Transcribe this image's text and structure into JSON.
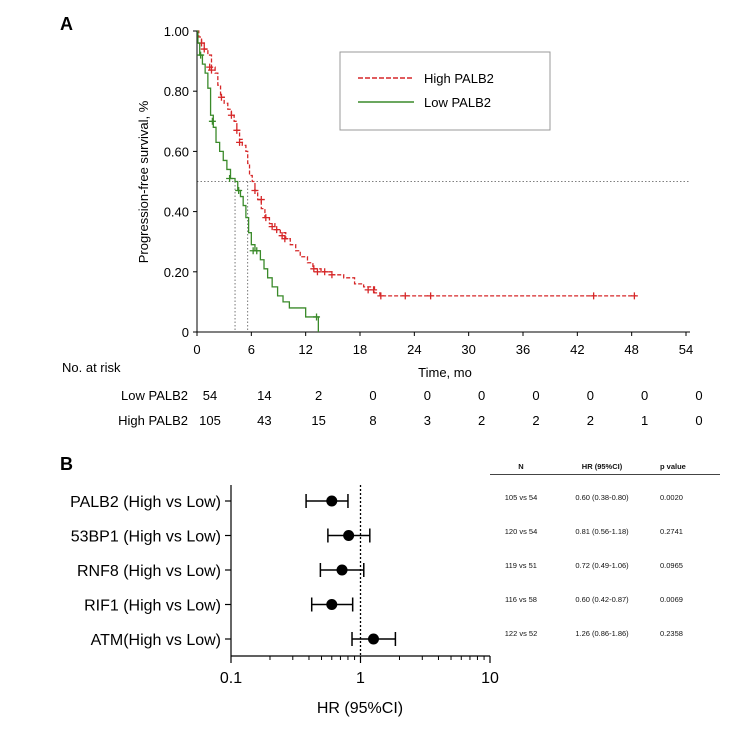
{
  "panel_a": {
    "letter": "A",
    "risk_table": {
      "title": "No. at risk",
      "rows": [
        {
          "label": "Low PALB2",
          "values": [
            "54",
            "14",
            "2",
            "0",
            "0",
            "0",
            "0",
            "0",
            "0",
            "0"
          ]
        },
        {
          "label": "High PALB2",
          "values": [
            "105",
            "43",
            "15",
            "8",
            "3",
            "2",
            "2",
            "2",
            "1",
            "0"
          ]
        }
      ]
    }
  },
  "panel_b": {
    "letter": "B",
    "table": {
      "headers": [
        "N",
        "HR (95%CI)",
        "p value"
      ],
      "rows": [
        {
          "n": "105 vs 54",
          "hr": "0.60 (0.38-0.80)",
          "p": "0.0020"
        },
        {
          "n": "120 vs 54",
          "hr": "0.81 (0.56-1.18)",
          "p": "0.2741"
        },
        {
          "n": "119 vs 51",
          "hr": "0.72 (0.49-1.06)",
          "p": "0.0965"
        },
        {
          "n": "116 vs 58",
          "hr": "0.60 (0.42-0.87)",
          "p": "0.0069"
        },
        {
          "n": "122 vs 52",
          "hr": "1.26 (0.86-1.86)",
          "p": "0.2358"
        }
      ]
    }
  },
  "chart_data": [
    {
      "type": "line",
      "subtype": "kaplan-meier",
      "title": "",
      "xlabel": "Time, mo",
      "ylabel": "Progression-free survival, %",
      "xlim": [
        0,
        54
      ],
      "ylim": [
        0,
        1
      ],
      "xticks": [
        "0",
        "6",
        "12",
        "18",
        "24",
        "30",
        "36",
        "42",
        "48",
        "54"
      ],
      "yticks": [
        "0",
        "0.20",
        "0.40",
        "0.60",
        "0.80",
        "1.00"
      ],
      "reference_line_y": 0.5,
      "median_markers_x": [
        4.2,
        5.6
      ],
      "legend_position": "top-right",
      "series": [
        {
          "name": "High PALB2",
          "color": "#d62728",
          "dash": true,
          "steps": [
            [
              0,
              1.0
            ],
            [
              0.2,
              0.98
            ],
            [
              0.5,
              0.96
            ],
            [
              0.8,
              0.94
            ],
            [
              1.2,
              0.92
            ],
            [
              1.6,
              0.88
            ],
            [
              2.0,
              0.86
            ],
            [
              2.3,
              0.82
            ],
            [
              2.6,
              0.78
            ],
            [
              3.0,
              0.76
            ],
            [
              3.4,
              0.74
            ],
            [
              3.8,
              0.72
            ],
            [
              4.1,
              0.7
            ],
            [
              4.4,
              0.67
            ],
            [
              4.7,
              0.64
            ],
            [
              5.0,
              0.62
            ],
            [
              5.4,
              0.6
            ],
            [
              5.6,
              0.56
            ],
            [
              5.8,
              0.52
            ],
            [
              6.1,
              0.5
            ],
            [
              6.4,
              0.47
            ],
            [
              6.7,
              0.44
            ],
            [
              7.1,
              0.41
            ],
            [
              7.5,
              0.38
            ],
            [
              8.0,
              0.36
            ],
            [
              8.6,
              0.34
            ],
            [
              9.2,
              0.33
            ],
            [
              9.8,
              0.31
            ],
            [
              10.3,
              0.29
            ],
            [
              10.9,
              0.27
            ],
            [
              11.4,
              0.25
            ],
            [
              12.2,
              0.23
            ],
            [
              12.8,
              0.21
            ],
            [
              13.7,
              0.2
            ],
            [
              14.9,
              0.19
            ],
            [
              16.2,
              0.18
            ],
            [
              17.4,
              0.16
            ],
            [
              18.4,
              0.15
            ],
            [
              19.6,
              0.13
            ],
            [
              20.2,
              0.12
            ],
            [
              48.5,
              0.12
            ]
          ],
          "censors": [
            [
              0.5,
              0.96
            ],
            [
              0.8,
              0.94
            ],
            [
              1.4,
              0.88
            ],
            [
              1.6,
              0.87
            ],
            [
              2.7,
              0.78
            ],
            [
              3.8,
              0.72
            ],
            [
              4.4,
              0.67
            ],
            [
              4.7,
              0.63
            ],
            [
              6.4,
              0.47
            ],
            [
              7.1,
              0.44
            ],
            [
              7.6,
              0.38
            ],
            [
              8.3,
              0.35
            ],
            [
              8.8,
              0.34
            ],
            [
              9.4,
              0.32
            ],
            [
              9.7,
              0.31
            ],
            [
              12.9,
              0.21
            ],
            [
              13.3,
              0.2
            ],
            [
              14.1,
              0.2
            ],
            [
              14.9,
              0.19
            ],
            [
              18.9,
              0.14
            ],
            [
              19.5,
              0.14
            ],
            [
              20.3,
              0.12
            ],
            [
              23.0,
              0.12
            ],
            [
              25.8,
              0.12
            ],
            [
              43.8,
              0.12
            ],
            [
              48.3,
              0.12
            ]
          ]
        },
        {
          "name": "Low PALB2",
          "color": "#3a8a2a",
          "dash": false,
          "steps": [
            [
              0,
              1.0
            ],
            [
              0.1,
              0.96
            ],
            [
              0.3,
              0.92
            ],
            [
              0.6,
              0.89
            ],
            [
              0.9,
              0.86
            ],
            [
              1.2,
              0.81
            ],
            [
              1.5,
              0.72
            ],
            [
              1.8,
              0.68
            ],
            [
              2.1,
              0.63
            ],
            [
              2.5,
              0.6
            ],
            [
              2.9,
              0.57
            ],
            [
              3.3,
              0.54
            ],
            [
              3.7,
              0.51
            ],
            [
              4.2,
              0.5
            ],
            [
              4.5,
              0.47
            ],
            [
              4.8,
              0.45
            ],
            [
              5.1,
              0.42
            ],
            [
              5.4,
              0.38
            ],
            [
              5.7,
              0.33
            ],
            [
              6.0,
              0.29
            ],
            [
              6.4,
              0.27
            ],
            [
              7.0,
              0.24
            ],
            [
              7.4,
              0.21
            ],
            [
              7.8,
              0.18
            ],
            [
              8.3,
              0.15
            ],
            [
              8.9,
              0.12
            ],
            [
              9.5,
              0.1
            ],
            [
              10.2,
              0.08
            ],
            [
              11.1,
              0.08
            ],
            [
              12.0,
              0.05
            ],
            [
              13.4,
              0.05
            ],
            [
              13.4,
              0.0
            ]
          ],
          "censors": [
            [
              0.4,
              0.92
            ],
            [
              1.7,
              0.7
            ],
            [
              3.6,
              0.51
            ],
            [
              4.6,
              0.47
            ],
            [
              6.2,
              0.27
            ],
            [
              6.6,
              0.27
            ],
            [
              13.2,
              0.05
            ]
          ]
        }
      ]
    },
    {
      "type": "scatter",
      "subtype": "forest-plot",
      "title": "",
      "xlabel": "HR (95%CI)",
      "ylabel": "",
      "xscale": "log",
      "xlim": [
        0.1,
        10
      ],
      "xticks": [
        "0.1",
        "1",
        "10"
      ],
      "reference_line_x": 1,
      "categories": [
        "PALB2 (High vs Low)",
        "53BP1 (High vs Low)",
        "RNF8 (High vs Low)",
        "RIF1 (High vs Low)",
        "ATM(High vs Low)"
      ],
      "hr": [
        0.6,
        0.81,
        0.72,
        0.6,
        1.26
      ],
      "ci_low": [
        0.38,
        0.56,
        0.49,
        0.42,
        0.86
      ],
      "ci_high": [
        0.8,
        1.18,
        1.06,
        0.87,
        1.86
      ]
    }
  ]
}
